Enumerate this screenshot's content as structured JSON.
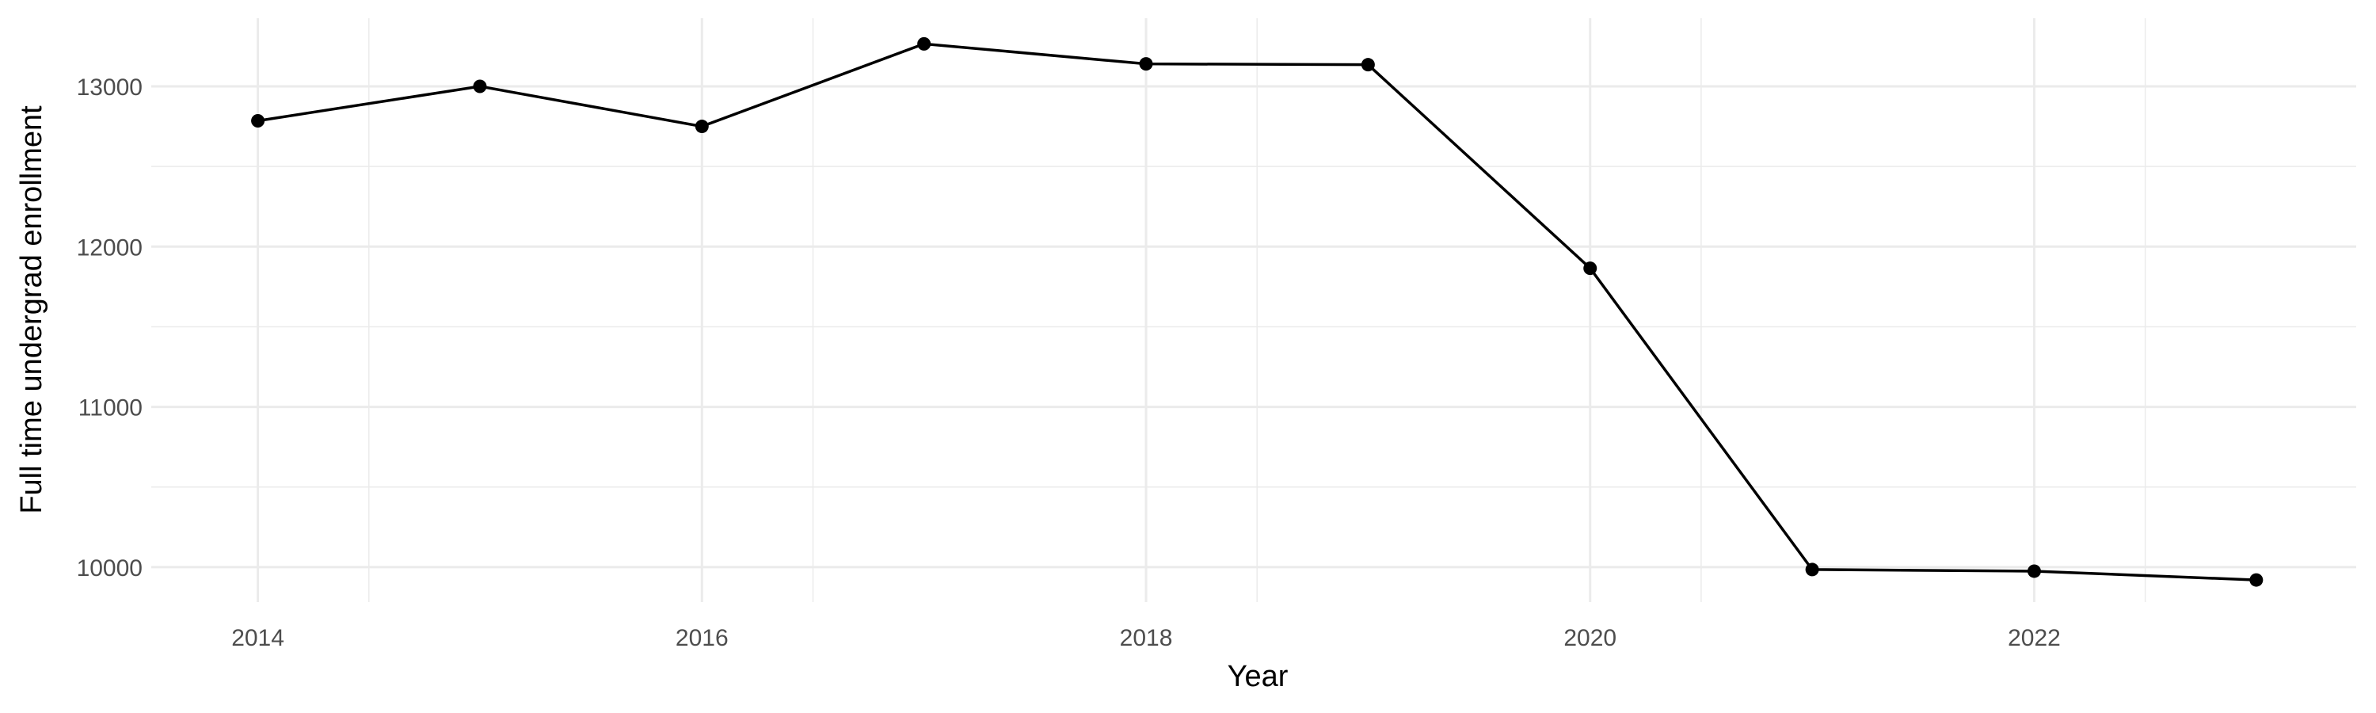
{
  "chart_data": {
    "type": "line",
    "title": "",
    "xlabel": "Year",
    "ylabel": "Full time undergrad enrollment",
    "x": [
      2014,
      2015,
      2016,
      2017,
      2018,
      2019,
      2020,
      2021,
      2022,
      2023
    ],
    "series": [
      {
        "values": [
          12785,
          13000,
          12750,
          13265,
          13140,
          13135,
          11865,
          9985,
          9975,
          9920
        ]
      }
    ],
    "xlim": [
      2013.52,
      2023.45
    ],
    "ylim": [
      9782,
      13425
    ],
    "xticks": [
      2014,
      2016,
      2018,
      2020,
      2022
    ],
    "xtick_labels": [
      "2014",
      "2016",
      "2018",
      "2020",
      "2022"
    ],
    "yticks": [
      10000,
      11000,
      12000,
      13000
    ],
    "ytick_labels": [
      "10000",
      "11000",
      "12000",
      "13000"
    ],
    "grid": true,
    "legend": "none",
    "colors": {
      "line": "#000000",
      "grid": "#ebebeb",
      "background": "#ffffff"
    }
  }
}
